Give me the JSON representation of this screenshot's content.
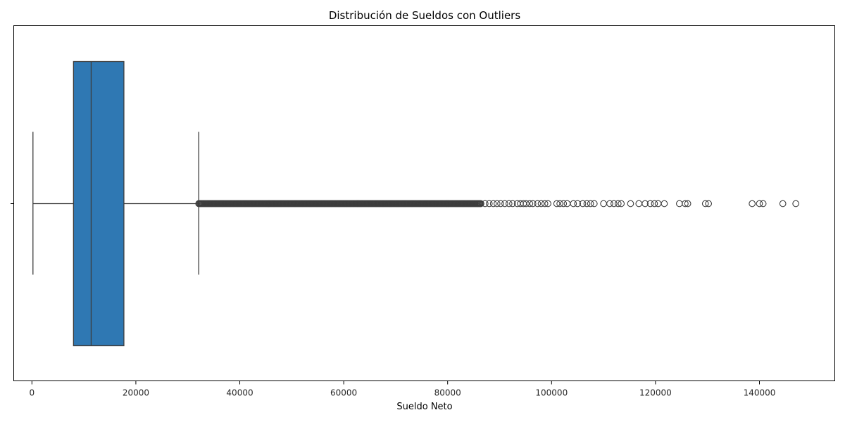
{
  "chart_data": {
    "type": "box",
    "title": "Distribución de Sueldos con Outliers",
    "xlabel": "Sueldo Neto",
    "ylabel": "",
    "xlim": [
      -3500,
      154500
    ],
    "xticks": [
      0,
      20000,
      40000,
      60000,
      80000,
      100000,
      120000,
      140000
    ],
    "grid": false,
    "orientation": "horizontal",
    "box": {
      "whisker_low": 200,
      "q1": 8000,
      "median": 11400,
      "q3": 17700,
      "whisker_high": 32100,
      "color": "#2f78b3"
    },
    "outliers": {
      "dense_range": [
        32100,
        86500
      ],
      "sparse_values": [
        87200,
        88000,
        88800,
        89500,
        90200,
        91000,
        91800,
        92500,
        93400,
        94000,
        94600,
        95100,
        95800,
        96400,
        97300,
        98000,
        98700,
        99300,
        101000,
        101600,
        102300,
        103000,
        104200,
        105000,
        106000,
        106800,
        107500,
        108200,
        110000,
        111200,
        112000,
        112800,
        113400,
        115200,
        116800,
        118000,
        119000,
        119800,
        120500,
        121700,
        124600,
        125700,
        126200,
        129600,
        130200,
        138600,
        140000,
        140700,
        144500,
        147000
      ]
    }
  }
}
